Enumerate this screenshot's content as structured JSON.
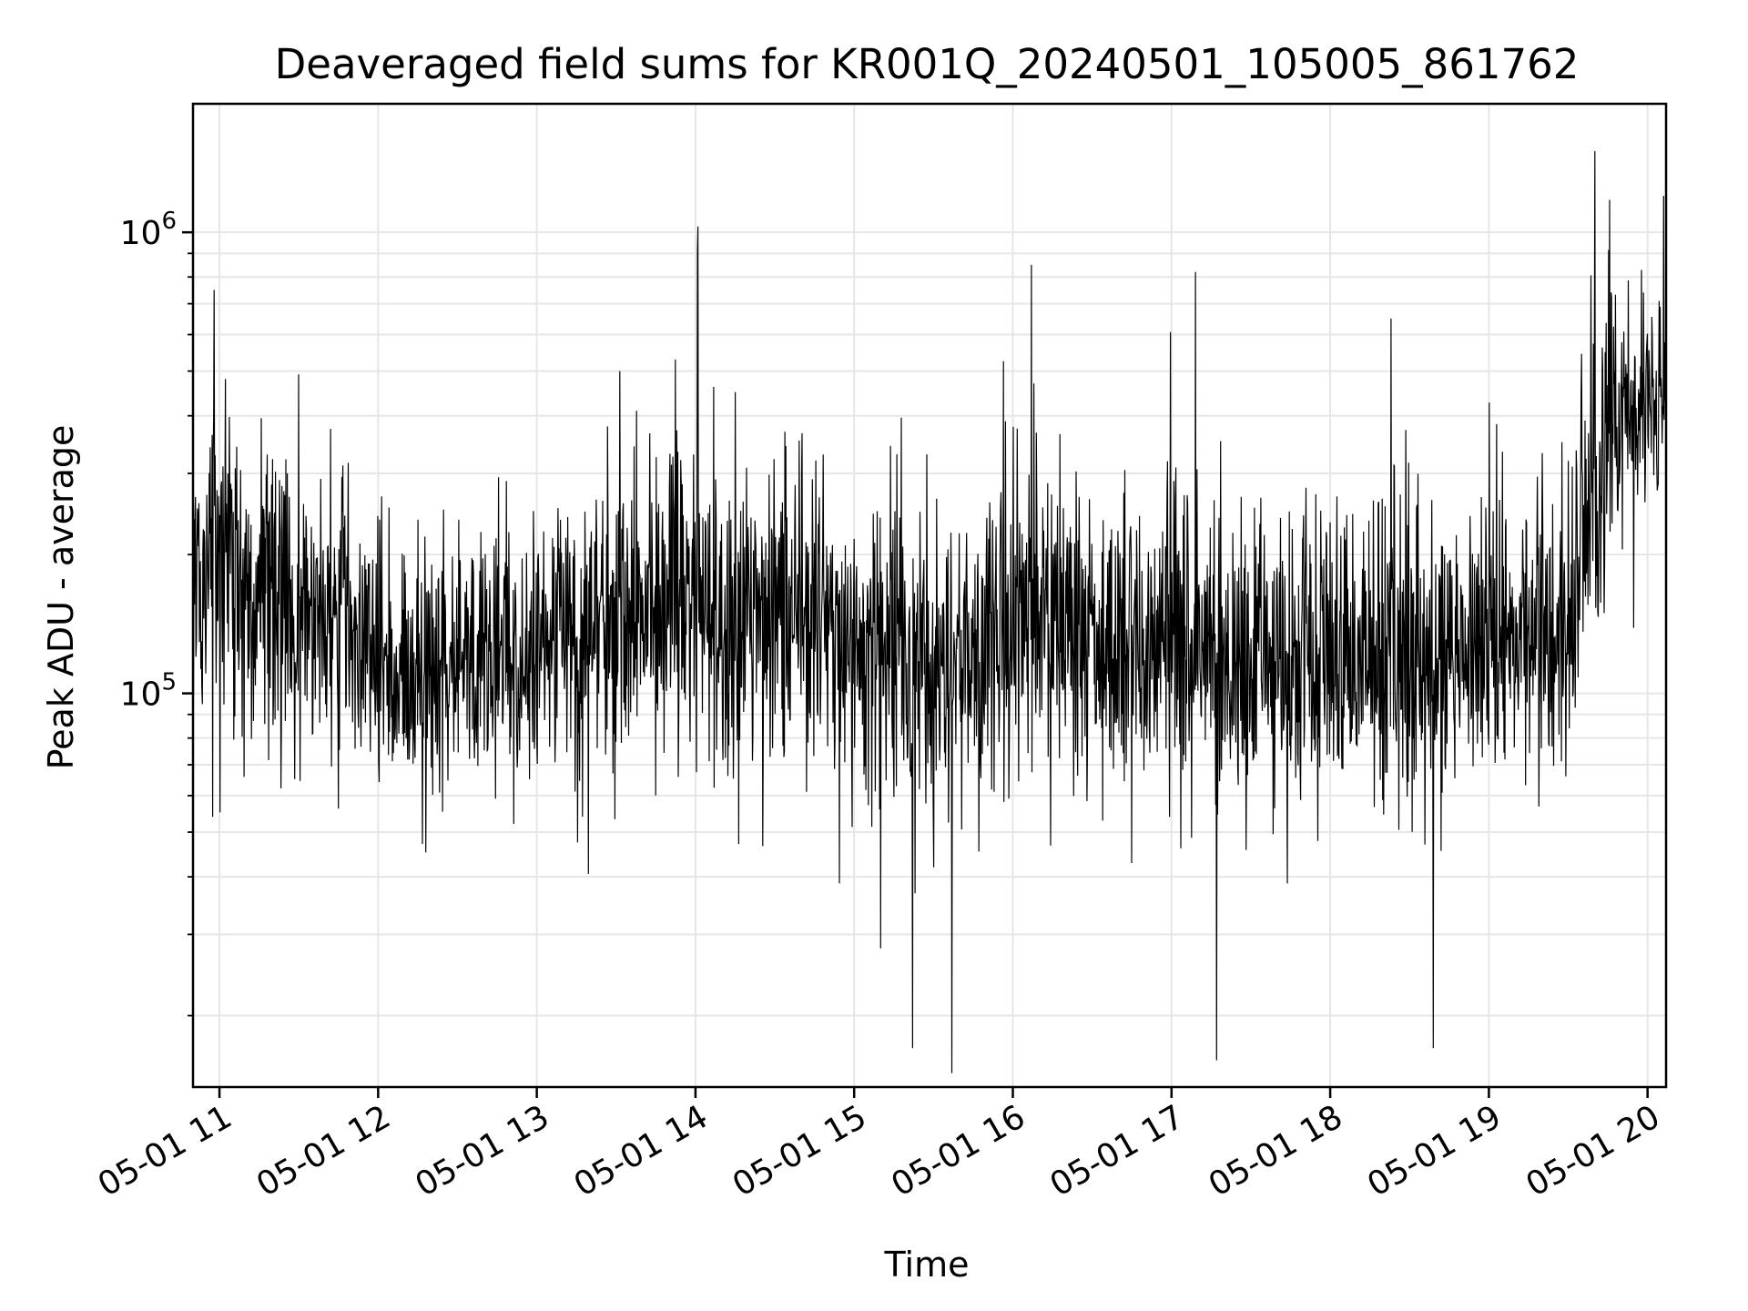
{
  "chart_data": {
    "type": "line",
    "title": "Deaveraged field sums for KR001Q_20240501_105005_861762",
    "xlabel": "Time",
    "ylabel": "Peak ADU - average",
    "yscale": "log",
    "ylim": [
      14000,
      1900000
    ],
    "xlim": [
      "2024-05-01 10:50",
      "2024-05-01 20:07"
    ],
    "x_ticks": [
      {
        "value": "2024-05-01 11:00",
        "label": "05-01 11"
      },
      {
        "value": "2024-05-01 12:00",
        "label": "05-01 12"
      },
      {
        "value": "2024-05-01 13:00",
        "label": "05-01 13"
      },
      {
        "value": "2024-05-01 14:00",
        "label": "05-01 14"
      },
      {
        "value": "2024-05-01 15:00",
        "label": "05-01 15"
      },
      {
        "value": "2024-05-01 16:00",
        "label": "05-01 16"
      },
      {
        "value": "2024-05-01 17:00",
        "label": "05-01 17"
      },
      {
        "value": "2024-05-01 18:00",
        "label": "05-01 18"
      },
      {
        "value": "2024-05-01 19:00",
        "label": "05-01 19"
      },
      {
        "value": "2024-05-01 20:00",
        "label": "05-01 20"
      }
    ],
    "y_ticks": [
      {
        "value": 100000,
        "base": "10",
        "exp": "5"
      },
      {
        "value": 1000000,
        "base": "10",
        "exp": "6"
      }
    ],
    "grid": true,
    "line_color": "#000000",
    "series": [
      {
        "x": [
          "2024-05-01 10:50",
          "2024-05-01 11:00",
          "2024-05-01 11:15",
          "2024-05-01 11:30",
          "2024-05-01 11:45",
          "2024-05-01 12:00",
          "2024-05-01 12:15",
          "2024-05-01 12:30",
          "2024-05-01 12:45",
          "2024-05-01 13:00",
          "2024-05-01 13:15",
          "2024-05-01 13:30",
          "2024-05-01 13:45",
          "2024-05-01 14:00",
          "2024-05-01 14:15",
          "2024-05-01 14:30",
          "2024-05-01 14:45",
          "2024-05-01 15:00",
          "2024-05-01 15:15",
          "2024-05-01 15:30",
          "2024-05-01 15:45",
          "2024-05-01 16:00",
          "2024-05-01 16:15",
          "2024-05-01 16:30",
          "2024-05-01 16:45",
          "2024-05-01 17:00",
          "2024-05-01 17:15",
          "2024-05-01 17:30",
          "2024-05-01 17:45",
          "2024-05-01 18:00",
          "2024-05-01 18:15",
          "2024-05-01 18:30",
          "2024-05-01 18:45",
          "2024-05-01 19:00",
          "2024-05-01 19:15",
          "2024-05-01 19:30",
          "2024-05-01 19:45",
          "2024-05-01 20:00",
          "2024-05-01 20:07"
        ],
        "y": [
          200000,
          220000,
          160000,
          150000,
          140000,
          120000,
          100000,
          110000,
          120000,
          130000,
          140000,
          150000,
          150000,
          150000,
          140000,
          150000,
          145000,
          140000,
          130000,
          115000,
          120000,
          150000,
          140000,
          125000,
          125000,
          130000,
          120000,
          115000,
          115000,
          120000,
          120000,
          115000,
          120000,
          125000,
          130000,
          140000,
          350000,
          450000,
          520000
        ],
        "range_low": [
          45000,
          40000,
          50000,
          45000,
          45000,
          40000,
          38000,
          40000,
          42000,
          38000,
          40000,
          42000,
          40000,
          40000,
          40000,
          42000,
          40000,
          38000,
          30000,
          25000,
          35000,
          45000,
          42000,
          38000,
          40000,
          40000,
          38000,
          35000,
          35000,
          38000,
          38000,
          35000,
          38000,
          40000,
          40000,
          45000,
          120000,
          150000,
          180000
        ],
        "range_high": [
          450000,
          750000,
          500000,
          550000,
          450000,
          400000,
          350000,
          380000,
          420000,
          400000,
          450000,
          500000,
          500000,
          1030000,
          450000,
          480000,
          550000,
          450000,
          400000,
          380000,
          420000,
          850000,
          450000,
          450000,
          450000,
          800000,
          400000,
          380000,
          400000,
          400000,
          650000,
          400000,
          400000,
          450000,
          420000,
          500000,
          1500000,
          1000000,
          1200000
        ]
      }
    ],
    "notable_extremes": [
      {
        "x": "2024-05-01 10:58",
        "y": 750000
      },
      {
        "x": "2024-05-01 14:01",
        "y": 1030000
      },
      {
        "x": "2024-05-01 15:10",
        "y": 28000
      },
      {
        "x": "2024-05-01 15:22",
        "y": 17000
      },
      {
        "x": "2024-05-01 15:37",
        "y": 15000
      },
      {
        "x": "2024-05-01 16:07",
        "y": 850000
      },
      {
        "x": "2024-05-01 17:09",
        "y": 820000
      },
      {
        "x": "2024-05-01 17:17",
        "y": 16000
      },
      {
        "x": "2024-05-01 18:23",
        "y": 650000
      },
      {
        "x": "2024-05-01 18:39",
        "y": 17000
      },
      {
        "x": "2024-05-01 19:40",
        "y": 1500000
      },
      {
        "x": "2024-05-01 20:06",
        "y": 1200000
      }
    ]
  }
}
